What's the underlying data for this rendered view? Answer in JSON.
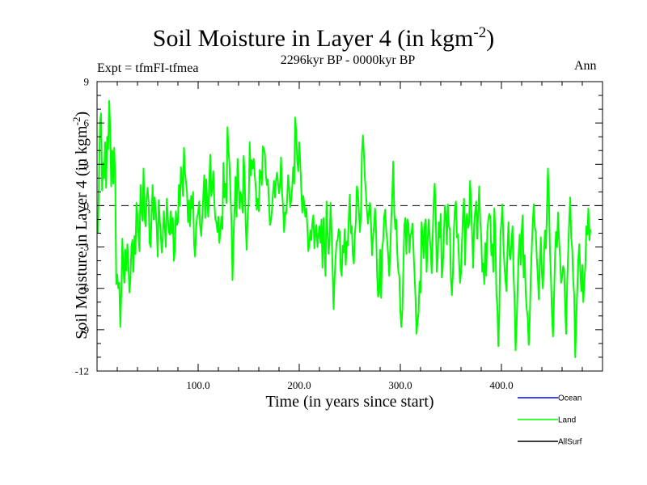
{
  "chart_data": {
    "type": "line",
    "title": "Soil Moisture in Layer 4 (in kgm",
    "title_sup": "-2",
    "title_end": ")",
    "subtitle": "2296kyr BP - 0000kyr BP",
    "experiment": "Expt = tfmFI-tfmea",
    "season": "Ann",
    "xlabel": "Time (in years since start)",
    "ylabel": "Soil Moisture in Layer 4 (in kgm",
    "ylabel_sup": "-2",
    "ylabel_end": ")",
    "xlim": [
      0,
      500
    ],
    "ylim": [
      -12,
      9
    ],
    "xticks": [
      100,
      200,
      300,
      400
    ],
    "xtick_labels": [
      "100.0",
      "200.0",
      "300.0",
      "400.0"
    ],
    "yticks": [
      9,
      6,
      3,
      0,
      -3,
      -6,
      -9,
      -12
    ],
    "ytick_labels": [
      "9",
      "6",
      "3",
      "0",
      "-3",
      "-6",
      "-9",
      "-12"
    ],
    "reference_line": 0,
    "legend": [
      {
        "name": "Ocean",
        "color": "#0000ff"
      },
      {
        "name": "Land",
        "color": "#00ff00"
      },
      {
        "name": "AllSurf",
        "color": "#000000"
      }
    ],
    "series": [
      {
        "name": "Land",
        "color": "#00ff00",
        "x_start": 1,
        "x_step": 1,
        "values": [
          -2.0,
          2.4,
          6.2,
          6.7,
          1.1,
          3.1,
          2.0,
          4.6,
          1.3,
          5.0,
          4.1,
          7.6,
          5.5,
          1.4,
          4.0,
          1.6,
          4.2,
          1.9,
          -5.7,
          -5.0,
          -6.0,
          -5.6,
          -8.8,
          -6.3,
          -2.4,
          -4.5,
          -5.6,
          -3.2,
          -4.7,
          -2.8,
          -4.2,
          -6.3,
          -5.4,
          -3.0,
          -2.5,
          -4.8,
          -2.2,
          -3.5,
          0.2,
          -0.7,
          -2.1,
          -3.3,
          1.5,
          -0.4,
          -1.1,
          2.7,
          -0.8,
          -1.5,
          0.5,
          1.3,
          0.3,
          -2.7,
          -3.0,
          -0.6,
          1.5,
          -1.0,
          0.6,
          -0.3,
          -1.5,
          -3.7,
          0.4,
          -1.0,
          -2.0,
          -3.4,
          -2.4,
          -0.4,
          -1.5,
          -3.0,
          0.5,
          -0.8,
          -1.9,
          -2.1,
          -0.4,
          -2.0,
          -0.9,
          -4.0,
          -3.2,
          -0.4,
          -1.4,
          -1.2,
          1.5,
          0.0,
          2.8,
          1.9,
          0.7,
          4.2,
          2.4,
          1.7,
          0.9,
          -1.2,
          0.4,
          -1.5,
          0.7,
          -0.2,
          1.0,
          -2.8,
          -3.7,
          -1.6,
          -0.8,
          -0.5,
          0.3,
          -1.5,
          -2.2,
          -0.9,
          0.6,
          2.2,
          -0.9,
          1.9,
          0.3,
          -0.8,
          1.7,
          3.7,
          0.7,
          1.3,
          2.5,
          0.3,
          -1.0,
          -1.2,
          -1.9,
          -0.8,
          -2.7,
          -1.8,
          -0.8,
          -1.7,
          3.1,
          0.6,
          1.6,
          0.2,
          5.7,
          4.1,
          3.0,
          0.8,
          -1.3,
          -5.4,
          -2.3,
          -0.3,
          2.1,
          -0.8,
          3.4,
          1.6,
          -0.2,
          1.0,
          0.5,
          -0.5,
          3.6,
          2.3,
          -1.4,
          -3.2,
          -0.6,
          0.1,
          4.6,
          2.2,
          3.3,
          2.7,
          3.4,
          2.2,
          1.3,
          -0.3,
          0.5,
          -0.4,
          2.6,
          2.4,
          1.5,
          4.3,
          4.1,
          3.8,
          2.2,
          1.5,
          1.9,
          0.3,
          -1.4,
          -1.1,
          -0.3,
          0.9,
          1.8,
          0.6,
          1.8,
          2.4,
          1.7,
          0.9,
          1.5,
          3.5,
          0.9,
          0.0,
          -1.9,
          -0.5,
          -0.6,
          0.4,
          2.2,
          1.3,
          -0.1,
          0.4,
          1.3,
          2.8,
          1.6,
          6.4,
          5.3,
          3.3,
          2.5,
          4.6,
          3.1,
          1.2,
          -0.5,
          0.7,
          0.1,
          -0.8,
          -0.2,
          -1.5,
          -3.3,
          -2.7,
          -1.8,
          -2.5,
          -1.2,
          -0.7,
          -3.1,
          -2.0,
          -1.4,
          -3.0,
          -2.2,
          -1.5,
          -2.7,
          -1.0,
          -4.5,
          -0.9,
          -3.2,
          -5.1,
          0.3,
          -1.8,
          -3.5,
          -2.6,
          0.2,
          -1.9,
          -4.7,
          -7.5,
          -5.2,
          -3.7,
          -2.6,
          -2.5,
          -1.7,
          -1.9,
          -4.6,
          -5.1,
          -2.9,
          -3.4,
          -1.7,
          -4.3,
          -2.6,
          -2.9,
          -0.9,
          0.8,
          -2.0,
          -1.5,
          -3.6,
          -4.2,
          -2.1,
          -1.1,
          1.4,
          1.0,
          -0.4,
          -1.9,
          -0.8,
          3.8,
          5.1,
          3.7,
          1.9,
          0.9,
          -0.4,
          -1.3,
          -0.5,
          0.2,
          -1.4,
          -3.6,
          -2.3,
          -1.4,
          -0.2,
          -1.7,
          -5.0,
          -6.6,
          -6.3,
          -3.2,
          -6.7,
          -3.2,
          -2.5,
          -0.8,
          -0.3,
          -1.8,
          -2.5,
          -3.6,
          -5.1,
          -3.3,
          -1.0,
          0.7,
          3.2,
          -0.5,
          -1.7,
          -1.0,
          -3.5,
          -4.8,
          -5.1,
          -7.6,
          -8.8,
          -7.6,
          -4.5,
          -1.4,
          -0.9,
          -3.5,
          -1.0,
          -1.3,
          -3.4,
          -2.1,
          -2.0,
          -1.3,
          -3.2,
          -4.9,
          -6.7,
          -9.3,
          -8.4,
          -7.8,
          -5.5,
          -6.3,
          -1.2,
          -2.2,
          -3.8,
          -1.5,
          -1.0,
          -4.8,
          -2.6,
          -1.0,
          -2.2,
          -3.1,
          -4.9,
          -2.3,
          0.3,
          1.6,
          -0.4,
          -4.8,
          -3.8,
          -1.2,
          -2.3,
          -0.6,
          -5.2,
          -4.5,
          -2.3,
          0.0,
          -0.6,
          -2.8,
          0.1,
          -1.5,
          -1.7,
          -5.3,
          -6.5,
          -4.9,
          -1.7,
          -0.2,
          0.3,
          -2.3,
          -2.1,
          -3.9,
          -5.6,
          -4.9,
          -2.6,
          -0.5,
          0.5,
          -4.3,
          -1.1,
          -0.6,
          -1.6,
          -1.3,
          1.8,
          0.2,
          -2.1,
          -4.5,
          -1.4,
          -0.4,
          0.3,
          -2.4,
          -0.5,
          1.4,
          -1.1,
          -2.2,
          -4.8,
          -4.2,
          -5.7,
          -2.7,
          -5.1,
          -1.9,
          -1.0,
          -0.6,
          -0.8,
          -3.6,
          -2.8,
          -4.8,
          -0.2,
          -2.1,
          -6.4,
          -7.4,
          -10.2,
          -7.6,
          -2.2,
          -1.1,
          0.1,
          -2.9,
          -4.4,
          -5.4,
          -6.2,
          -3.1,
          -1.2,
          -3.6,
          -3.9,
          -2.6,
          -1.5,
          -4.9,
          -6.9,
          -10.5,
          -8.7,
          -6.1,
          -3.6,
          -2.1,
          -4.3,
          -1.9,
          -0.7,
          -5.2,
          -3.6,
          -6.3,
          -7.5,
          -8.1,
          -10.1,
          -8.3,
          -5.2,
          -3.1,
          -1.2,
          0.1,
          -1.6,
          -1.9,
          -3.8,
          -5.2,
          -6.8,
          -4.2,
          -2.3,
          -4.9,
          -6.0,
          -3.9,
          -1.8,
          -3.1,
          -0.4,
          2.7,
          0.5,
          -3.2,
          -5.3,
          -7.9,
          -9.5,
          -6.8,
          -3.7,
          -1.9,
          -3.0,
          -0.5,
          -2.5,
          -3.7,
          -5.6,
          -5.2,
          -4.4,
          -4.6,
          -7.3,
          -9.3,
          -5.8,
          -3.4,
          -1.2,
          0.6,
          -2.3,
          -3.1,
          -5.4,
          -6.5,
          -11.0,
          -8.3,
          -6.2,
          -4.0,
          -2.8,
          -4.8,
          -6.2,
          -4.3,
          -7.0,
          -5.5,
          -4.4,
          -1.5,
          -2.1,
          -0.2,
          -2.5,
          -1.7
        ]
      }
    ]
  }
}
